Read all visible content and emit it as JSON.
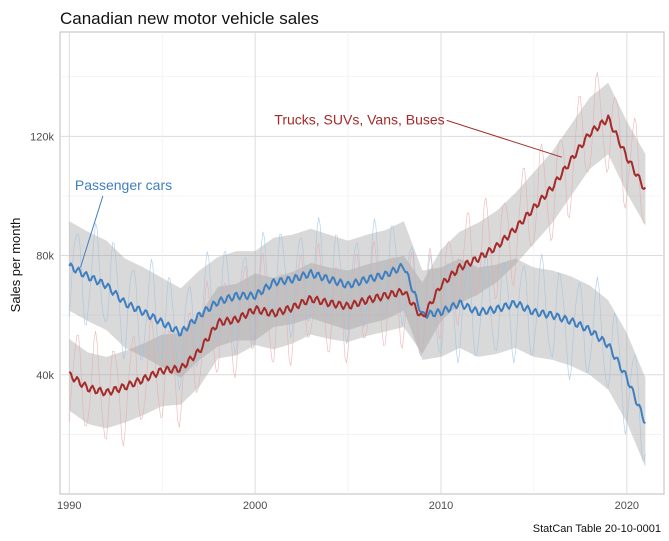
{
  "chart_data": {
    "type": "line",
    "title": "Canadian new motor vehicle sales",
    "xlabel": "",
    "ylabel": "Sales per month",
    "caption": "StatCan Table 20-10-0001",
    "xlim": [
      1989.5,
      2022.0
    ],
    "ylim": [
      0,
      155000
    ],
    "x_ticks": [
      1990,
      2000,
      2010,
      2020
    ],
    "x_tick_labels": [
      "1990",
      "2000",
      "2010",
      "2020"
    ],
    "y_ticks": [
      40000,
      80000,
      120000
    ],
    "y_tick_labels": [
      "40k",
      "80k",
      "120k"
    ],
    "grid": true,
    "legend": "none (direct labels)",
    "series": [
      {
        "name": "Passenger cars",
        "color": "#3f7fbf",
        "raw_color": "#9ec3e4",
        "band_halfwidth": 15000,
        "trend": [
          [
            1990,
            76500
          ],
          [
            1991,
            73000
          ],
          [
            1992,
            70000
          ],
          [
            1993,
            64000
          ],
          [
            1994,
            61000
          ],
          [
            1995,
            57500
          ],
          [
            1996,
            54000
          ],
          [
            1997,
            60000
          ],
          [
            1998,
            64500
          ],
          [
            1999,
            66500
          ],
          [
            2000,
            66500
          ],
          [
            2001,
            71000
          ],
          [
            2002,
            72000
          ],
          [
            2003,
            74000
          ],
          [
            2004,
            72000
          ],
          [
            2005,
            70000
          ],
          [
            2006,
            72000
          ],
          [
            2007,
            73500
          ],
          [
            2008,
            76500
          ],
          [
            2009,
            60000
          ],
          [
            2010,
            61000
          ],
          [
            2011,
            64000
          ],
          [
            2012,
            61000
          ],
          [
            2013,
            62000
          ],
          [
            2014,
            64000
          ],
          [
            2015,
            61000
          ],
          [
            2016,
            60000
          ],
          [
            2017,
            58000
          ],
          [
            2018,
            55000
          ],
          [
            2019,
            50000
          ],
          [
            2020,
            39000
          ],
          [
            2021,
            24000
          ]
        ],
        "raw_amplitude": 20000
      },
      {
        "name": "Trucks, SUVs, Vans, Buses",
        "color": "#a52a2a",
        "raw_color": "#e7a9a9",
        "band_halfwidth": 12000,
        "trend": [
          [
            1990,
            40000
          ],
          [
            1991,
            35500
          ],
          [
            1992,
            34000
          ],
          [
            1993,
            36000
          ],
          [
            1994,
            38500
          ],
          [
            1995,
            41500
          ],
          [
            1996,
            42000
          ],
          [
            1997,
            48000
          ],
          [
            1998,
            57500
          ],
          [
            1999,
            58500
          ],
          [
            2000,
            62000
          ],
          [
            2001,
            60500
          ],
          [
            2002,
            62500
          ],
          [
            2003,
            65500
          ],
          [
            2004,
            64000
          ],
          [
            2005,
            63000
          ],
          [
            2006,
            65000
          ],
          [
            2007,
            66500
          ],
          [
            2008,
            68000
          ],
          [
            2009,
            59000
          ],
          [
            2010,
            70000
          ],
          [
            2011,
            76000
          ],
          [
            2012,
            79000
          ],
          [
            2013,
            83000
          ],
          [
            2014,
            89000
          ],
          [
            2015,
            96000
          ],
          [
            2016,
            103000
          ],
          [
            2017,
            112000
          ],
          [
            2018,
            121000
          ],
          [
            2019,
            126000
          ],
          [
            2020,
            113000
          ],
          [
            2021,
            102000
          ]
        ],
        "raw_amplitude": 20000
      }
    ],
    "annotations": [
      {
        "text": "Passenger cars",
        "color": "#3f7fbf",
        "text_x": 1990.3,
        "text_y": 102000,
        "point_x": 1990.6,
        "point_y": 76000
      },
      {
        "text": "Trucks, SUVs, Vans, Buses",
        "color": "#a52a2a",
        "text_x": 2010.2,
        "text_y": 124000,
        "point_x": 2016.5,
        "point_y": 113000
      }
    ]
  }
}
